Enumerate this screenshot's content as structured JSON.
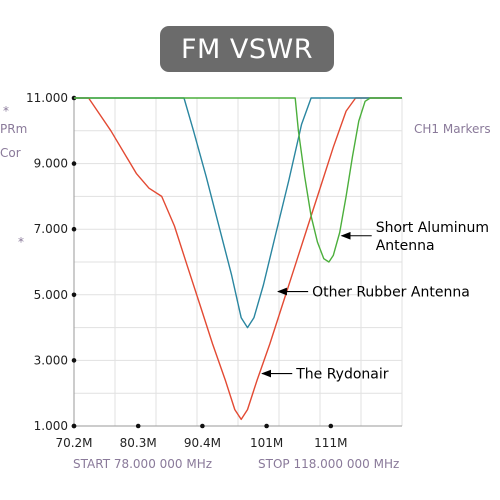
{
  "title": "FM VSWR",
  "side": {
    "marker_dot": "*",
    "label_prm": "PRm",
    "label_cor": "Cor",
    "label_markers": "CH1 Markers"
  },
  "footer": {
    "start": "START 78.000 000 MHz",
    "stop": "STOP 118.000 000 MHz"
  },
  "chart_data": {
    "type": "line",
    "title": "FM VSWR",
    "ylim": [
      1.0,
      11.0
    ],
    "xlim": [
      70.2,
      121.8
    ],
    "y_ticks": [
      1.0,
      3.0,
      5.0,
      7.0,
      9.0,
      11.0
    ],
    "y_tick_labels": [
      "1.000",
      "3.000",
      "5.000",
      "7.000",
      "9.000",
      "11.000"
    ],
    "x_ticks": [
      70.2,
      80.3,
      90.4,
      100.5,
      110.6
    ],
    "x_tick_labels": [
      "70.2M",
      "80.3M",
      "90.4M",
      "101M",
      "111M"
    ],
    "grid": true,
    "series": [
      {
        "name": "The Rydonair",
        "color": "#e34a33",
        "x": [
          70.2,
          72.5,
          76.0,
          80.0,
          82.0,
          84.0,
          86.0,
          88.0,
          90.0,
          92.0,
          94.0,
          95.5,
          96.5,
          97.5,
          99.0,
          101.0,
          103.0,
          105.0,
          107.0,
          109.0,
          111.0,
          113.0,
          114.5,
          116.0,
          118.0,
          121.8
        ],
        "values": [
          11.0,
          11.0,
          10.0,
          8.7,
          8.25,
          8.0,
          7.1,
          5.9,
          4.7,
          3.5,
          2.4,
          1.5,
          1.2,
          1.5,
          2.4,
          3.5,
          4.7,
          5.9,
          7.1,
          8.3,
          9.5,
          10.6,
          11.0,
          11.0,
          11.0,
          11.0
        ]
      },
      {
        "name": "Other Rubber Antenna",
        "color": "#2a86a0",
        "x": [
          70.2,
          80.0,
          86.0,
          87.5,
          89.0,
          91.0,
          93.0,
          95.0,
          96.5,
          97.5,
          98.5,
          100.0,
          102.0,
          104.0,
          106.0,
          107.5,
          109.0,
          121.8
        ],
        "values": [
          11.0,
          11.0,
          11.0,
          11.0,
          10.0,
          8.6,
          7.1,
          5.6,
          4.3,
          4.0,
          4.3,
          5.3,
          6.9,
          8.5,
          10.2,
          11.0,
          11.0,
          11.0
        ]
      },
      {
        "name": "Short Aluminum Antenna",
        "color": "#4caf3c",
        "x": [
          70.2,
          90.0,
          104.5,
          105.0,
          105.5,
          106.5,
          107.5,
          108.5,
          109.5,
          110.3,
          111.0,
          112.0,
          113.0,
          114.0,
          115.0,
          116.0,
          116.8,
          121.8
        ],
        "values": [
          11.0,
          11.0,
          11.0,
          11.0,
          10.0,
          8.6,
          7.4,
          6.6,
          6.1,
          6.0,
          6.2,
          6.9,
          8.0,
          9.2,
          10.3,
          10.9,
          11.0,
          11.0
        ]
      }
    ],
    "annotations": [
      {
        "lines": [
          "Short Aluminum",
          "Antenna"
        ],
        "target_x": 112.0,
        "target_y": 6.8
      },
      {
        "lines": [
          "Other Rubber Antenna"
        ],
        "target_x": 102.0,
        "target_y": 5.1
      },
      {
        "lines": [
          "The Rydonair"
        ],
        "target_x": 99.5,
        "target_y": 2.6
      }
    ]
  }
}
